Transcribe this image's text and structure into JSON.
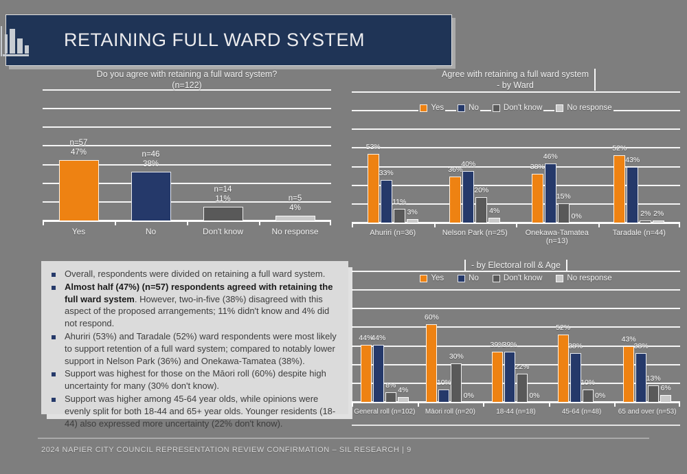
{
  "slide": {
    "title": "RETAINING FULL WARD SYSTEM",
    "footer": "2024 Napier City Council Representation Review Confirmation – SIL Research | 9"
  },
  "colors": {
    "background": "#7E7E7E",
    "banner": "#1F3456",
    "text_box": "#DBDBDB",
    "gridline": "#FFFFFF",
    "bullet": "#25396A",
    "series": [
      "#EE8212",
      "#25396A",
      "#595959",
      "#C9C9C9"
    ]
  },
  "legend": [
    "Yes",
    "No",
    "Don't know",
    "No response"
  ],
  "chart_data": [
    {
      "type": "bar",
      "title": "Do you agree with retaining a full ward system?",
      "subtitle": "(n=122)",
      "categories": [
        "Yes",
        "No",
        "Don't know",
        "No response"
      ],
      "values": [
        47,
        38,
        11,
        4
      ],
      "counts": [
        "n=57",
        "n=46",
        "n=14",
        "n=5"
      ],
      "value_suffix": "%",
      "ylim": [
        0,
        100
      ],
      "grid": true,
      "legend_position": "none"
    },
    {
      "type": "bar",
      "title": "Agree with retaining a full ward system",
      "subtitle": "- by Ward",
      "categories": [
        "Ahuriri (n=36)",
        "Nelson Park (n=25)",
        "Onekawa-Tamatea (n=13)",
        "Taradale (n=44)"
      ],
      "series": [
        {
          "name": "Yes",
          "values": [
            53,
            36,
            38,
            52
          ]
        },
        {
          "name": "No",
          "values": [
            33,
            40,
            46,
            43
          ]
        },
        {
          "name": "Don't know",
          "values": [
            11,
            20,
            15,
            2
          ]
        },
        {
          "name": "No response",
          "values": [
            3,
            4,
            0,
            2
          ]
        }
      ],
      "value_suffix": "%",
      "ylim": [
        0,
        100
      ],
      "grid": true,
      "legend_position": "top"
    },
    {
      "type": "bar",
      "title": "- by Electoral roll & Age",
      "categories": [
        "General roll (n=102)",
        "Māori roll (n=20)",
        "18-44 (n=18)",
        "45-64 (n=48)",
        "65 and over (n=53)"
      ],
      "series": [
        {
          "name": "Yes",
          "values": [
            44,
            60,
            39,
            52,
            43
          ]
        },
        {
          "name": "No",
          "values": [
            44,
            10,
            39,
            38,
            38
          ]
        },
        {
          "name": "Don't know",
          "values": [
            8,
            30,
            22,
            10,
            13
          ]
        },
        {
          "name": "No response",
          "values": [
            4,
            0,
            0,
            0,
            6
          ]
        }
      ],
      "value_suffix": "%",
      "ylim": [
        0,
        100
      ],
      "grid": true,
      "legend_position": "top"
    }
  ],
  "notes": [
    {
      "bold": "",
      "text": "Overall, respondents were divided on retaining a full ward system."
    },
    {
      "bold": "Almost half (47%) (n=57) respondents agreed with retaining the full ward system",
      "text": ". However, two-in-five (38%) disagreed with this aspect of the proposed arrangements; 11% didn't know and 4% did not respond."
    },
    {
      "bold": "",
      "text": "Ahuriri (53%) and Taradale (52%) ward respondents were most likely to support retention of a full ward system; compared to notably lower support in Nelson Park (36%) and Onekawa-Tamatea (38%)."
    },
    {
      "bold": "",
      "text": "Support was highest for those on the Māori roll (60%) despite high uncertainty for many (30% don't know)."
    },
    {
      "bold": "",
      "text": "Support was higher among 45-64 year olds, while opinions were evenly split for both 18-44 and 65+ year olds. Younger residents (18-44) also expressed more uncertainty (22% don't know)."
    }
  ]
}
